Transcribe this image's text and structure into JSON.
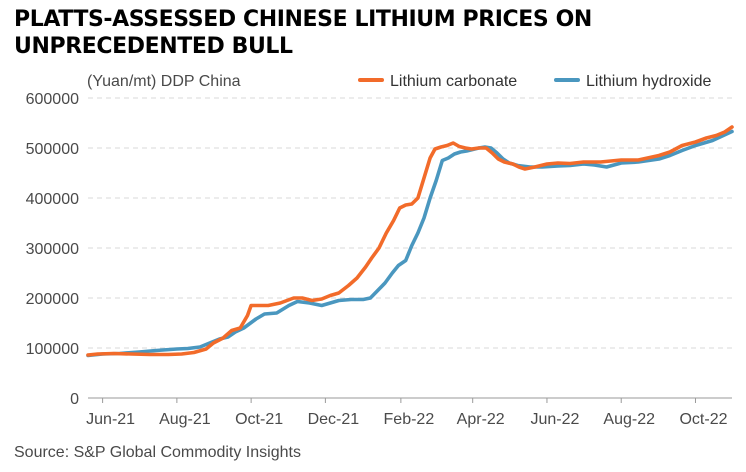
{
  "title": "PLATTS-ASSESSED CHINESE LITHIUM PRICES ON UNPRECEDENTED BULL",
  "source": "Source: S&P Global Commodity Insights",
  "colors": {
    "lithium_carbonate": "#F26B2A",
    "lithium_hydroxide": "#4A97BF",
    "grid": "#D9D9D9",
    "axis_text": "#4A4A4A"
  },
  "chart_data": {
    "type": "line",
    "unit_label": "(Yuan/mt) DDP China",
    "ylim": [
      0,
      600000
    ],
    "yticks": [
      0,
      100000,
      200000,
      300000,
      400000,
      500000,
      600000
    ],
    "xlim": [
      "2021-05-20",
      "2022-10-31"
    ],
    "xticks": [
      {
        "date": "2021-06-01",
        "label": "Jun-21"
      },
      {
        "date": "2021-08-01",
        "label": "Aug-21"
      },
      {
        "date": "2021-10-01",
        "label": "Oct-21"
      },
      {
        "date": "2021-12-01",
        "label": "Dec-21"
      },
      {
        "date": "2022-02-01",
        "label": "Feb-22"
      },
      {
        "date": "2022-04-01",
        "label": "Apr-22"
      },
      {
        "date": "2022-06-01",
        "label": "Jun-22"
      },
      {
        "date": "2022-08-01",
        "label": "Aug-22"
      },
      {
        "date": "2022-10-01",
        "label": "Oct-22"
      }
    ],
    "grid": "horizontal",
    "legend_position": "top-right",
    "series": [
      {
        "name": "Lithium carbonate",
        "color_key": "lithium_carbonate",
        "points": [
          [
            "2021-05-20",
            86000
          ],
          [
            "2021-05-28",
            88000
          ],
          [
            "2021-06-10",
            89000
          ],
          [
            "2021-06-25",
            88000
          ],
          [
            "2021-07-10",
            87000
          ],
          [
            "2021-07-25",
            87000
          ],
          [
            "2021-08-05",
            88000
          ],
          [
            "2021-08-15",
            91000
          ],
          [
            "2021-08-25",
            98000
          ],
          [
            "2021-08-31",
            110000
          ],
          [
            "2021-09-08",
            120000
          ],
          [
            "2021-09-15",
            135000
          ],
          [
            "2021-09-22",
            140000
          ],
          [
            "2021-09-28",
            165000
          ],
          [
            "2021-10-01",
            185000
          ],
          [
            "2021-10-15",
            185000
          ],
          [
            "2021-10-25",
            190000
          ],
          [
            "2021-11-05",
            200000
          ],
          [
            "2021-11-12",
            200000
          ],
          [
            "2021-11-20",
            195000
          ],
          [
            "2021-11-28",
            198000
          ],
          [
            "2021-12-05",
            205000
          ],
          [
            "2021-12-12",
            210000
          ],
          [
            "2021-12-20",
            225000
          ],
          [
            "2021-12-27",
            240000
          ],
          [
            "2022-01-03",
            262000
          ],
          [
            "2022-01-08",
            280000
          ],
          [
            "2022-01-14",
            300000
          ],
          [
            "2022-01-20",
            330000
          ],
          [
            "2022-01-26",
            355000
          ],
          [
            "2022-01-31",
            380000
          ],
          [
            "2022-02-05",
            386000
          ],
          [
            "2022-02-10",
            388000
          ],
          [
            "2022-02-15",
            400000
          ],
          [
            "2022-02-20",
            440000
          ],
          [
            "2022-02-25",
            480000
          ],
          [
            "2022-03-01",
            498000
          ],
          [
            "2022-03-06",
            502000
          ],
          [
            "2022-03-11",
            505000
          ],
          [
            "2022-03-16",
            510000
          ],
          [
            "2022-03-21",
            503000
          ],
          [
            "2022-03-26",
            500000
          ],
          [
            "2022-03-31",
            498000
          ],
          [
            "2022-04-06",
            500000
          ],
          [
            "2022-04-12",
            500000
          ],
          [
            "2022-04-17",
            490000
          ],
          [
            "2022-04-22",
            478000
          ],
          [
            "2022-04-27",
            472000
          ],
          [
            "2022-05-04",
            468000
          ],
          [
            "2022-05-09",
            462000
          ],
          [
            "2022-05-14",
            458000
          ],
          [
            "2022-05-22",
            462000
          ],
          [
            "2022-06-01",
            468000
          ],
          [
            "2022-06-10",
            470000
          ],
          [
            "2022-06-20",
            469000
          ],
          [
            "2022-07-01",
            472000
          ],
          [
            "2022-07-15",
            472000
          ],
          [
            "2022-08-01",
            476000
          ],
          [
            "2022-08-15",
            476000
          ],
          [
            "2022-09-01",
            485000
          ],
          [
            "2022-09-10",
            492000
          ],
          [
            "2022-09-20",
            505000
          ],
          [
            "2022-10-01",
            512000
          ],
          [
            "2022-10-10",
            520000
          ],
          [
            "2022-10-18",
            525000
          ],
          [
            "2022-10-25",
            532000
          ],
          [
            "2022-10-31",
            542000
          ]
        ]
      },
      {
        "name": "Lithium hydroxide",
        "color_key": "lithium_hydroxide",
        "points": [
          [
            "2021-05-20",
            85000
          ],
          [
            "2021-06-01",
            88000
          ],
          [
            "2021-06-15",
            89000
          ],
          [
            "2021-07-01",
            92000
          ],
          [
            "2021-07-15",
            95000
          ],
          [
            "2021-08-01",
            98000
          ],
          [
            "2021-08-10",
            99000
          ],
          [
            "2021-08-20",
            102000
          ],
          [
            "2021-08-28",
            110000
          ],
          [
            "2021-09-05",
            118000
          ],
          [
            "2021-09-12",
            122000
          ],
          [
            "2021-09-18",
            132000
          ],
          [
            "2021-09-25",
            140000
          ],
          [
            "2021-10-05",
            158000
          ],
          [
            "2021-10-12",
            168000
          ],
          [
            "2021-10-22",
            170000
          ],
          [
            "2021-11-01",
            185000
          ],
          [
            "2021-11-08",
            193000
          ],
          [
            "2021-11-18",
            190000
          ],
          [
            "2021-11-28",
            185000
          ],
          [
            "2021-12-05",
            190000
          ],
          [
            "2021-12-12",
            195000
          ],
          [
            "2021-12-22",
            197000
          ],
          [
            "2022-01-01",
            197000
          ],
          [
            "2022-01-07",
            200000
          ],
          [
            "2022-01-13",
            215000
          ],
          [
            "2022-01-19",
            230000
          ],
          [
            "2022-01-25",
            250000
          ],
          [
            "2022-01-30",
            265000
          ],
          [
            "2022-02-05",
            275000
          ],
          [
            "2022-02-10",
            305000
          ],
          [
            "2022-02-15",
            330000
          ],
          [
            "2022-02-20",
            360000
          ],
          [
            "2022-02-25",
            400000
          ],
          [
            "2022-03-02",
            435000
          ],
          [
            "2022-03-07",
            475000
          ],
          [
            "2022-03-12",
            480000
          ],
          [
            "2022-03-17",
            488000
          ],
          [
            "2022-03-22",
            492000
          ],
          [
            "2022-03-27",
            494000
          ],
          [
            "2022-04-01",
            497000
          ],
          [
            "2022-04-06",
            500000
          ],
          [
            "2022-04-11",
            502000
          ],
          [
            "2022-04-16",
            500000
          ],
          [
            "2022-04-21",
            490000
          ],
          [
            "2022-04-26",
            478000
          ],
          [
            "2022-05-01",
            470000
          ],
          [
            "2022-05-08",
            465000
          ],
          [
            "2022-05-18",
            462000
          ],
          [
            "2022-05-28",
            462000
          ],
          [
            "2022-06-10",
            464000
          ],
          [
            "2022-06-20",
            465000
          ],
          [
            "2022-07-01",
            468000
          ],
          [
            "2022-07-10",
            466000
          ],
          [
            "2022-07-20",
            462000
          ],
          [
            "2022-08-01",
            470000
          ],
          [
            "2022-08-15",
            472000
          ],
          [
            "2022-09-01",
            478000
          ],
          [
            "2022-09-10",
            485000
          ],
          [
            "2022-09-20",
            495000
          ],
          [
            "2022-10-01",
            505000
          ],
          [
            "2022-10-15",
            515000
          ],
          [
            "2022-10-31",
            533000
          ]
        ]
      }
    ]
  }
}
